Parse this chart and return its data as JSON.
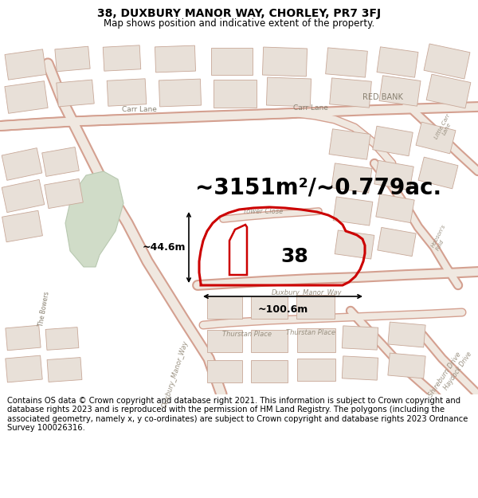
{
  "title_line1": "38, DUXBURY MANOR WAY, CHORLEY, PR7 3FJ",
  "title_line2": "Map shows position and indicative extent of the property.",
  "area_text": "~3151m²/~0.779ac.",
  "label_38": "38",
  "dim_height": "~44.6m",
  "dim_width": "~100.6m",
  "footer_text": "Contains OS data © Crown copyright and database right 2021. This information is subject to Crown copyright and database rights 2023 and is reproduced with the permission of HM Land Registry. The polygons (including the associated geometry, namely x, y co-ordinates) are subject to Crown copyright and database rights 2023 Ordnance Survey 100026316.",
  "map_bg": "#f7f3ee",
  "road_fill": "#f0e8e0",
  "road_edge": "#d4a090",
  "building_fill": "#e8e0d8",
  "building_stroke": "#c8a898",
  "green_fill": "#d0dcc8",
  "green_stroke": "#b8c8b0",
  "plot_color": "#cc0000",
  "plot_lw": 2.2,
  "inner_color": "#cc0000",
  "inner_lw": 1.8,
  "title_fs": 10,
  "subtitle_fs": 8.5,
  "area_fs": 20,
  "label_fs": 18,
  "dim_fs": 9,
  "footer_fs": 7.2,
  "figsize": [
    6.0,
    6.25
  ],
  "dpi": 100
}
